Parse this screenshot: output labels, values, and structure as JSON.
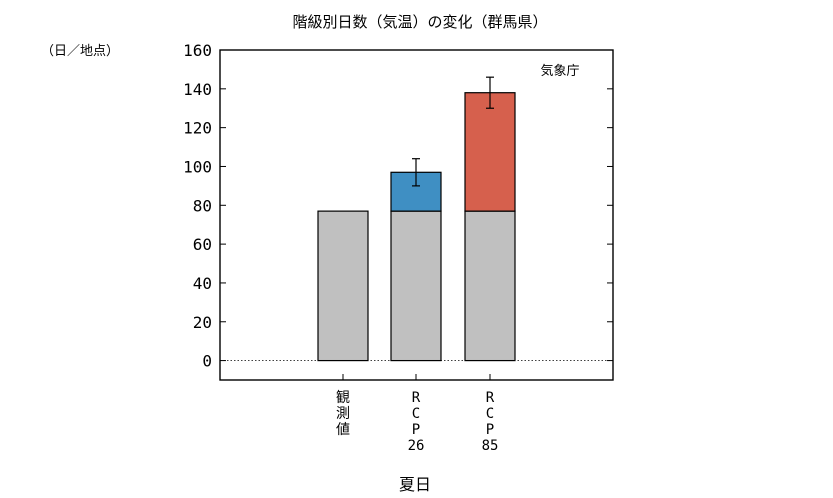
{
  "chart_data": {
    "type": "bar",
    "title": "階級別日数（気温）の変化（群馬県）",
    "ylabel": "（日／地点）",
    "xlabel": "夏日",
    "source_label": "気象庁",
    "ylim": [
      -10,
      160
    ],
    "yticks": [
      0,
      20,
      40,
      60,
      80,
      100,
      120,
      140,
      160
    ],
    "grid": false,
    "categories": [
      {
        "lines": [
          "観",
          "測",
          "値"
        ]
      },
      {
        "lines": [
          "R",
          "C",
          "P",
          "26"
        ]
      },
      {
        "lines": [
          "R",
          "C",
          "P",
          "85"
        ]
      }
    ],
    "series": [
      {
        "name": "",
        "color": "#c0c0c0",
        "values": [
          77,
          77,
          77
        ]
      },
      {
        "name": "",
        "color": "#3f8fc3",
        "values": [
          0,
          20,
          61
        ]
      }
    ],
    "totals": [
      77,
      97,
      138
    ],
    "error_bars": [
      null,
      {
        "low": 90,
        "high": 104
      },
      {
        "low": 130,
        "high": 146
      }
    ],
    "zero_line": "dotted"
  }
}
